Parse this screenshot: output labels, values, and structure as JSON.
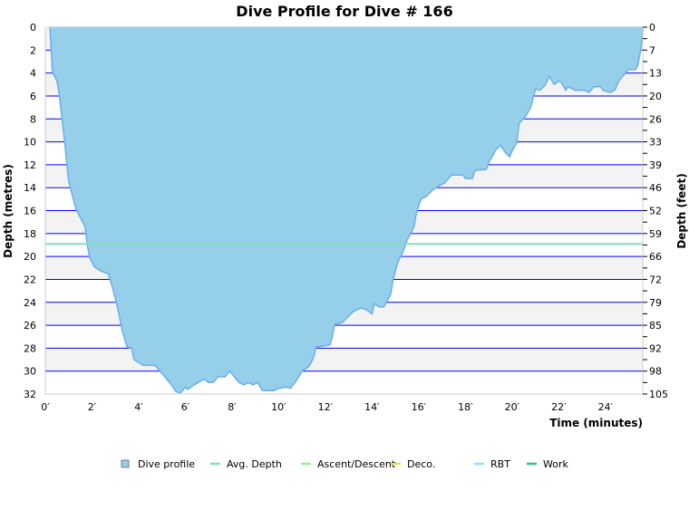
{
  "chart_data": {
    "type": "area",
    "title": "Dive Profile for Dive # 166",
    "xlabel": "Time (minutes)",
    "ylabel": "Depth (metres)",
    "ylabel_right": "Depth (feet)",
    "xlim": [
      0,
      25.6
    ],
    "ylim": [
      0,
      32
    ],
    "y_inverted": true,
    "grid": true,
    "legend_position": "bottom",
    "x_ticks": [
      0,
      2,
      4,
      6,
      8,
      10,
      12,
      14,
      16,
      18,
      20,
      22,
      24
    ],
    "x_tick_labels": [
      "0′",
      "2′",
      "4′",
      "6′",
      "8′",
      "10′",
      "12′",
      "14′",
      "16′",
      "18′",
      "20′",
      "22′",
      "24′"
    ],
    "y_ticks": [
      0,
      2,
      4,
      6,
      8,
      10,
      12,
      14,
      16,
      18,
      20,
      22,
      24,
      26,
      28,
      30,
      32
    ],
    "y_tick_labels": [
      "0",
      "2",
      "4",
      "6",
      "8",
      "10",
      "12",
      "14",
      "16",
      "18",
      "20",
      "22",
      "24",
      "26",
      "28",
      "30",
      "32"
    ],
    "y_right_tick_labels": [
      "0",
      "7",
      "13",
      "20",
      "26",
      "33",
      "39",
      "46",
      "52",
      "59",
      "66",
      "72",
      "79",
      "85",
      "92",
      "98",
      "105"
    ],
    "legend": [
      {
        "name": "Dive profile",
        "symbol": "square",
        "color": "#96cfe9"
      },
      {
        "name": "Avg. Depth",
        "symbol": "line",
        "color": "#7fe0b8"
      },
      {
        "name": "Ascent/Descent",
        "symbol": "line",
        "color": "#99ee99"
      },
      {
        "name": "Deco.",
        "symbol": "line",
        "color": "#dddd66"
      },
      {
        "name": "RBT",
        "symbol": "line",
        "color": "#99ddff"
      },
      {
        "name": "Work",
        "symbol": "line",
        "color": "#33bb99"
      }
    ],
    "avg_depth": 18.9,
    "colors": {
      "fill": "#96cfe9",
      "stroke": "#6aaeea",
      "grid": "#0000ff",
      "band": "#f3f3f3"
    },
    "series": [
      {
        "name": "Dive profile",
        "time": [
          0.2,
          0.3,
          0.5,
          0.6,
          0.8,
          1.0,
          1.3,
          1.5,
          1.7,
          1.8,
          1.9,
          2.1,
          2.4,
          2.7,
          2.9,
          3.1,
          3.3,
          3.5,
          3.7,
          3.8,
          4.2,
          4.7,
          5.0,
          5.4,
          5.6,
          5.8,
          6.0,
          6.1,
          6.3,
          6.8,
          7.0,
          7.2,
          7.4,
          7.7,
          7.9,
          8.1,
          8.3,
          8.5,
          8.7,
          8.9,
          9.1,
          9.3,
          9.8,
          10.0,
          10.3,
          10.5,
          10.7,
          11.0,
          11.3,
          11.5,
          11.6,
          12.0,
          12.2,
          12.3,
          12.4,
          12.7,
          12.9,
          13.2,
          13.5,
          13.7,
          14.0,
          14.1,
          14.3,
          14.5,
          14.8,
          14.9,
          15.1,
          15.3,
          15.5,
          15.8,
          15.9,
          16.1,
          16.3,
          16.6,
          16.9,
          17.1,
          17.4,
          17.9,
          18.0,
          18.3,
          18.4,
          18.9,
          19.0,
          19.2,
          19.3,
          19.5,
          19.7,
          19.9,
          20.0,
          20.2,
          20.3,
          20.6,
          20.8,
          21.0,
          21.2,
          21.4,
          21.6,
          21.8,
          22.0,
          22.1,
          22.3,
          22.4,
          22.7,
          23.1,
          23.3,
          23.5,
          23.8,
          23.9,
          24.2,
          24.4,
          24.6,
          24.9,
          25.0,
          25.3,
          25.4,
          25.5,
          25.6,
          25.6
        ],
        "depth": [
          0,
          3.9,
          4.7,
          5.9,
          9.5,
          13.4,
          15.8,
          16.6,
          17.4,
          19.0,
          20.1,
          20.9,
          21.3,
          21.5,
          22.9,
          24.5,
          26.5,
          27.9,
          28.0,
          29.0,
          29.5,
          29.5,
          30.2,
          31.2,
          31.8,
          31.9,
          31.4,
          31.6,
          31.3,
          30.7,
          31.0,
          31.0,
          30.5,
          30.5,
          30.0,
          30.5,
          31.0,
          31.2,
          31.0,
          31.2,
          31.0,
          31.7,
          31.7,
          31.5,
          31.4,
          31.5,
          31.0,
          30.0,
          29.6,
          28.8,
          27.9,
          27.8,
          27.7,
          27.0,
          25.9,
          25.8,
          25.4,
          24.8,
          24.5,
          24.6,
          25.0,
          24.1,
          24.4,
          24.4,
          23.3,
          22.0,
          20.5,
          19.7,
          18.6,
          17.4,
          16.2,
          15.0,
          14.8,
          14.2,
          13.8,
          13.6,
          12.9,
          12.9,
          13.2,
          13.2,
          12.5,
          12.4,
          11.8,
          11.1,
          10.7,
          10.3,
          10.9,
          11.3,
          10.8,
          10.1,
          8.4,
          7.7,
          7.0,
          5.4,
          5.5,
          5.1,
          4.3,
          5.0,
          4.7,
          4.8,
          5.5,
          5.2,
          5.5,
          5.5,
          5.7,
          5.2,
          5.2,
          5.5,
          5.7,
          5.5,
          4.6,
          3.9,
          3.7,
          3.7,
          3.2,
          2.1,
          0.4,
          0
        ]
      }
    ]
  }
}
